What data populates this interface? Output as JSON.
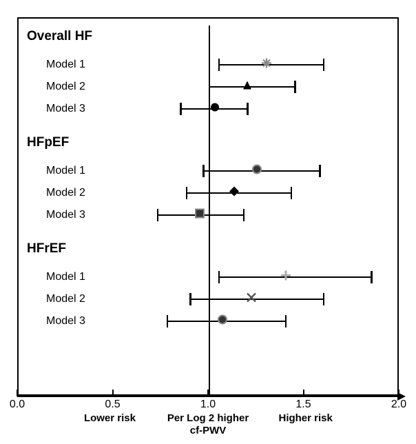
{
  "chart": {
    "type": "forest-plot",
    "background_color": "#ffffff",
    "border_color": "#000000",
    "xlim": [
      0.0,
      2.0
    ],
    "xticks": [
      0.0,
      0.5,
      1.0,
      1.5,
      2.0
    ],
    "reference": 1.0,
    "capHeight": 18,
    "markerSize": 14,
    "axis_label_left": "Lower risk",
    "axis_label_center_top": "Per Log 2 higher",
    "axis_label_center_bottom": "cf-PWV",
    "axis_label_right": "Higher risk",
    "font_family": "Arial",
    "group_fontsize": 19,
    "label_fontsize": 16,
    "tick_fontsize": 16,
    "bottom_fontsize": 15,
    "groups": [
      {
        "title": "Overall HF",
        "rows": [
          {
            "label": "Model 1",
            "pt": 1.3,
            "lo": 1.05,
            "hi": 1.6,
            "marker": "asterisk",
            "gray": true
          },
          {
            "label": "Model 2",
            "pt": 1.2,
            "lo": 1.0,
            "hi": 1.45,
            "marker": "triangle",
            "gray": false
          },
          {
            "label": "Model 3",
            "pt": 1.03,
            "lo": 0.85,
            "hi": 1.2,
            "marker": "circle",
            "gray": false
          }
        ]
      },
      {
        "title": "HFpEF",
        "rows": [
          {
            "label": "Model 1",
            "pt": 1.25,
            "lo": 0.97,
            "hi": 1.58,
            "marker": "circle-gray",
            "gray": false
          },
          {
            "label": "Model 2",
            "pt": 1.13,
            "lo": 0.88,
            "hi": 1.43,
            "marker": "diamond",
            "gray": false
          },
          {
            "label": "Model 3",
            "pt": 0.95,
            "lo": 0.73,
            "hi": 1.18,
            "marker": "square-gray",
            "gray": false
          }
        ]
      },
      {
        "title": "HFrEF",
        "rows": [
          {
            "label": "Model 1",
            "pt": 1.4,
            "lo": 1.05,
            "hi": 1.85,
            "marker": "plus-gray",
            "gray": true
          },
          {
            "label": "Model 2",
            "pt": 1.22,
            "lo": 0.9,
            "hi": 1.6,
            "marker": "x",
            "gray": false
          },
          {
            "label": "Model 3",
            "pt": 1.07,
            "lo": 0.78,
            "hi": 1.4,
            "marker": "circle-gray",
            "gray": false
          }
        ]
      }
    ]
  }
}
